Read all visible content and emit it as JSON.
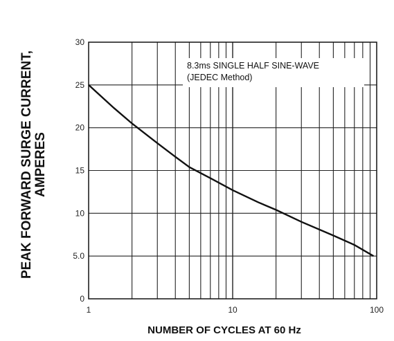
{
  "chart_data": {
    "type": "line",
    "title": "",
    "xlabel": "NUMBER OF CYCLES AT 60 Hz",
    "ylabel_lines": [
      "PEAK  FORWARD SURGE CURRENT,",
      "AMPERES"
    ],
    "x_scale": "log",
    "xlim": [
      1,
      100
    ],
    "ylim": [
      0,
      30
    ],
    "x_ticks": [
      1,
      10,
      100
    ],
    "x_tick_labels": [
      "1",
      "10",
      "100"
    ],
    "y_ticks": [
      0,
      5,
      10,
      15,
      20,
      25,
      30
    ],
    "y_tick_labels": [
      "0",
      "5.0",
      "10",
      "15",
      "20",
      "25",
      "30"
    ],
    "grid": true,
    "annotation_lines": [
      "8.3ms SINGLE HALF SINE-WAVE",
      "(JEDEC Method)"
    ],
    "series": [
      {
        "x": [
          1,
          1.5,
          2,
          3,
          4,
          5,
          7,
          10,
          15,
          20,
          30,
          50,
          70,
          95
        ],
        "y": [
          25,
          22.3,
          20.5,
          18.2,
          16.6,
          15.4,
          14.1,
          12.7,
          11.3,
          10.4,
          9.0,
          7.4,
          6.3,
          5.0
        ]
      }
    ]
  }
}
